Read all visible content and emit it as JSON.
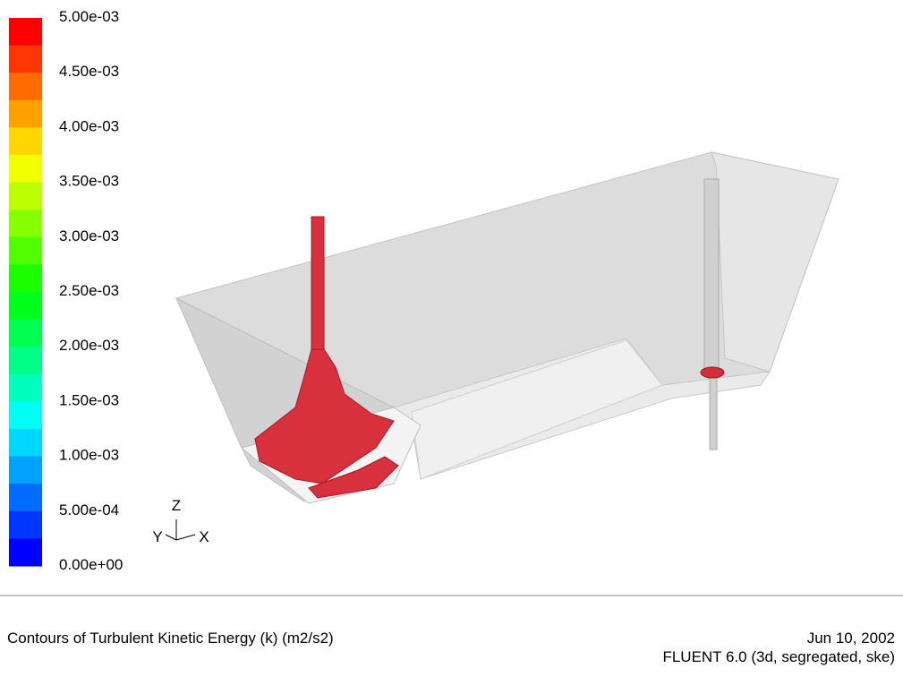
{
  "colorbar": {
    "labels": [
      "5.00e-03",
      "4.50e-03",
      "4.00e-03",
      "3.50e-03",
      "3.00e-03",
      "2.50e-03",
      "2.00e-03",
      "1.50e-03",
      "1.00e-03",
      "5.00e-04",
      "0.00e+00"
    ]
  },
  "triad": {
    "z": "Z",
    "y": "Y",
    "x": "X"
  },
  "footer": {
    "title": "Contours of Turbulent Kinetic Energy (k) (m2/s2)",
    "date": "Jun 10, 2002",
    "solver": "FLUENT 6.0 (3d, segregated, ske)"
  }
}
